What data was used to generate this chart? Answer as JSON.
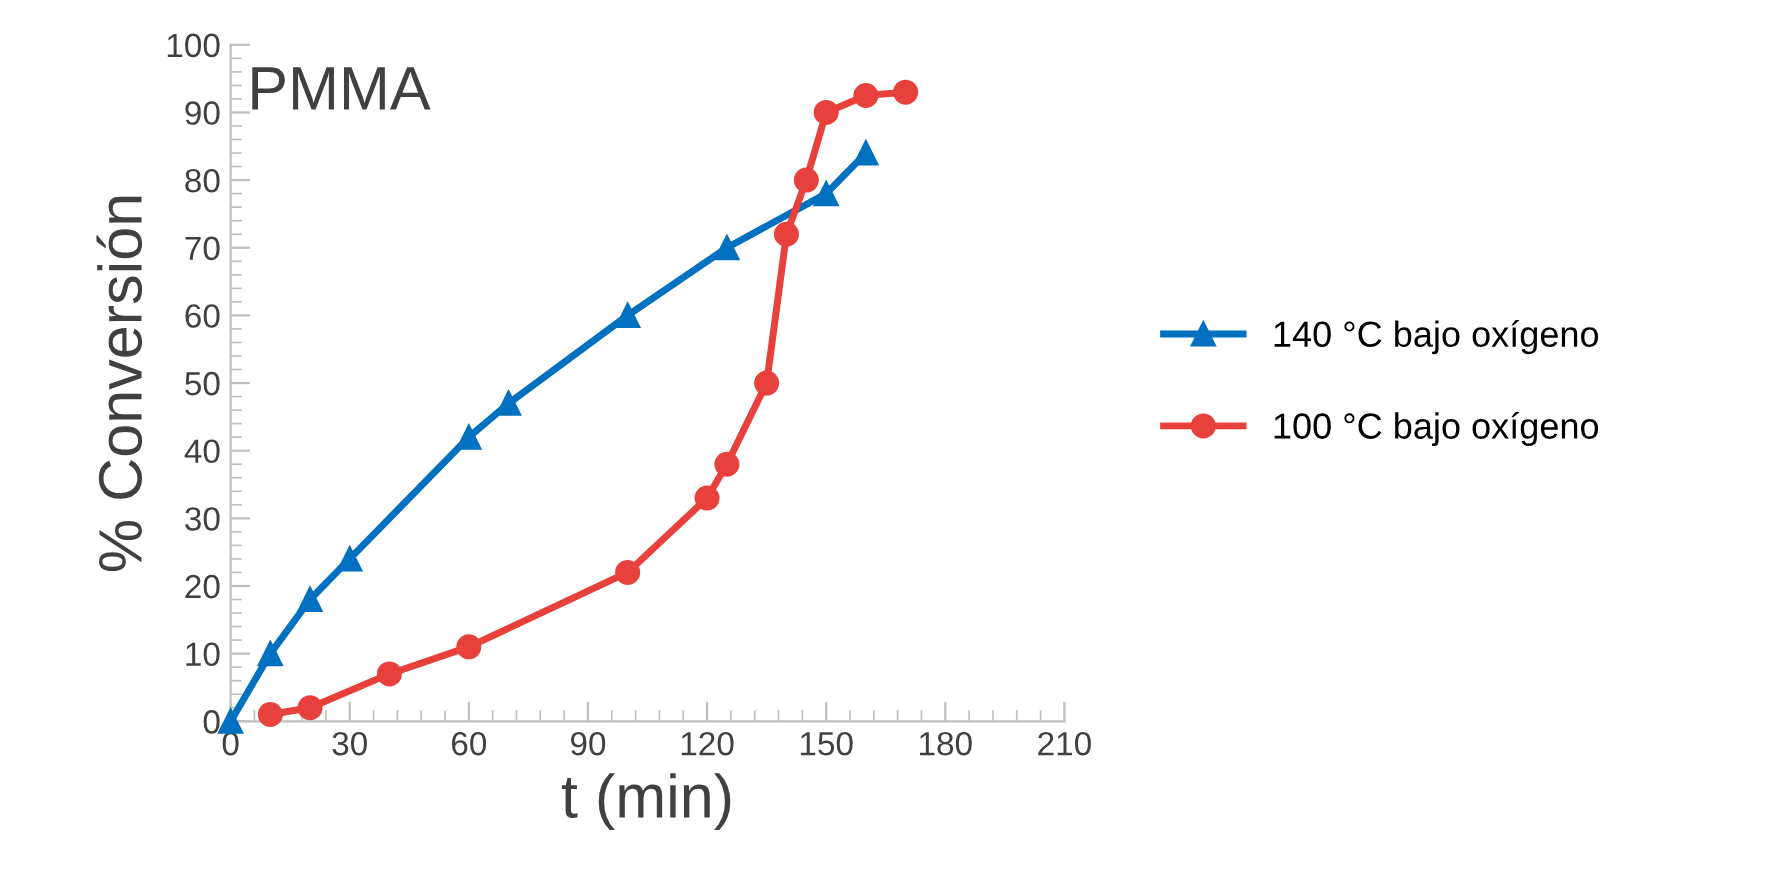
{
  "chart_data": {
    "type": "line",
    "ylabel": "% Conversión",
    "xlabel": "t (min)",
    "annotations": [
      "PMMA"
    ],
    "xlim": [
      0,
      210
    ],
    "xticks": [
      0,
      30,
      60,
      90,
      120,
      150,
      180,
      210
    ],
    "ylim": [
      0,
      100
    ],
    "yticks": [
      0,
      10,
      20,
      30,
      40,
      50,
      60,
      70,
      80,
      90,
      100
    ],
    "line_style": "solid",
    "grid": false,
    "legend": "right",
    "series": [
      {
        "name": "140 °C bajo oxígeno",
        "color": "#0070c0",
        "marker": "triangle",
        "x": [
          0,
          10,
          20,
          30,
          60,
          70,
          100,
          125,
          150,
          160
        ],
        "values": [
          0,
          10,
          18,
          24,
          42,
          47,
          60,
          70,
          78,
          84
        ]
      },
      {
        "name": "100 °C bajo oxígeno",
        "color": "#e8413c",
        "marker": "circle",
        "x": [
          10,
          20,
          40,
          60,
          100,
          120,
          125,
          135,
          140,
          145,
          150,
          160,
          170
        ],
        "values": [
          1,
          2,
          7,
          11,
          22,
          33,
          38,
          50,
          72,
          80,
          90,
          92.5,
          93
        ]
      }
    ]
  }
}
